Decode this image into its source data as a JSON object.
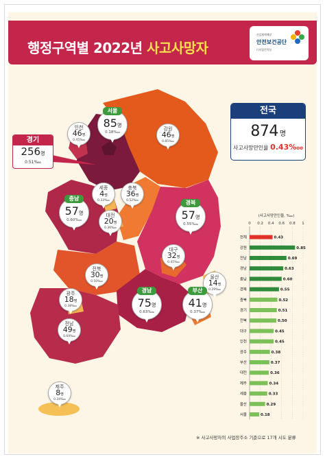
{
  "header": {
    "title_main": "행정구역별 2022년",
    "title_highlight": "사고사망자",
    "logo_small": "산업재해예방",
    "logo_main": "안전보건공단",
    "logo_sub": "디지털전략실"
  },
  "total": {
    "label": "전국",
    "count": "874",
    "unit": "명",
    "rate_label": "사고사망만인율",
    "rate": "0.43",
    "rate_unit": "‱"
  },
  "callout_gyeonggi": {
    "name": "경기",
    "count": "256",
    "unit": "명",
    "rate": "0.51",
    "rate_unit": "‱"
  },
  "regions": [
    {
      "id": "seoul",
      "name": "서울",
      "count": "85",
      "rate": "0.18",
      "unit": "명",
      "rate_unit": "‱",
      "color": "#3d9a3d"
    },
    {
      "id": "incheon",
      "name": "인천",
      "count": "46",
      "rate": "0.45",
      "unit": "명",
      "rate_unit": "‱",
      "color": ""
    },
    {
      "id": "gangwon",
      "name": "강원",
      "count": "46",
      "rate": "0.85",
      "unit": "명",
      "rate_unit": "‱",
      "color": ""
    },
    {
      "id": "sejong",
      "name": "세종",
      "count": "4",
      "rate": "0.33",
      "unit": "명",
      "rate_unit": "‱",
      "color": ""
    },
    {
      "id": "chungbuk",
      "name": "충북",
      "count": "36",
      "rate": "0.52",
      "unit": "명",
      "rate_unit": "‱",
      "color": ""
    },
    {
      "id": "chungnam",
      "name": "충남",
      "count": "57",
      "rate": "0.60",
      "unit": "명",
      "rate_unit": "‱",
      "color": "#3d9a3d"
    },
    {
      "id": "daejeon",
      "name": "대전",
      "count": "20",
      "rate": "0.36",
      "unit": "명",
      "rate_unit": "‱",
      "color": ""
    },
    {
      "id": "gyeongbuk",
      "name": "경북",
      "count": "57",
      "rate": "0.55",
      "unit": "명",
      "rate_unit": "‱",
      "color": "#3d9a3d"
    },
    {
      "id": "daegu",
      "name": "대구",
      "count": "32",
      "rate": "0.45",
      "unit": "명",
      "rate_unit": "‱",
      "color": ""
    },
    {
      "id": "jeonbuk",
      "name": "전북",
      "count": "30",
      "rate": "0.50",
      "unit": "명",
      "rate_unit": "‱",
      "color": ""
    },
    {
      "id": "ulsan",
      "name": "울산",
      "count": "14",
      "rate": "0.29",
      "unit": "명",
      "rate_unit": "‱",
      "color": ""
    },
    {
      "id": "gwangju",
      "name": "광주",
      "count": "18",
      "rate": "0.38",
      "unit": "명",
      "rate_unit": "‱",
      "color": ""
    },
    {
      "id": "gyeongnam",
      "name": "경남",
      "count": "75",
      "rate": "0.63",
      "unit": "명",
      "rate_unit": "‱",
      "color": "#3d9a3d"
    },
    {
      "id": "busan",
      "name": "부산",
      "count": "41",
      "rate": "0.37",
      "unit": "명",
      "rate_unit": "‱",
      "color": "#3d9a3d"
    },
    {
      "id": "jeonnam",
      "name": "전남",
      "count": "49",
      "rate": "0.69",
      "unit": "명",
      "rate_unit": "‱",
      "color": ""
    },
    {
      "id": "jeju",
      "name": "제주",
      "count": "8",
      "rate": "0.34",
      "unit": "명",
      "rate_unit": "‱",
      "color": ""
    }
  ],
  "chart_data": {
    "type": "bar",
    "title": "(사고사망만인율, ‱)",
    "xlim": [
      0,
      1
    ],
    "ticks": [
      "0",
      "0.2",
      "0.4",
      "0.6",
      "0.8",
      "1"
    ],
    "categories": [
      "전체",
      "강원",
      "전남",
      "경남",
      "충남",
      "경북",
      "충북",
      "경기",
      "전북",
      "대구",
      "인천",
      "광주",
      "부산",
      "대전",
      "제주",
      "세종",
      "울산",
      "서울"
    ],
    "values": [
      0.43,
      0.85,
      0.69,
      0.63,
      0.6,
      0.55,
      0.52,
      0.51,
      0.5,
      0.45,
      0.45,
      0.38,
      0.37,
      0.36,
      0.34,
      0.33,
      0.29,
      0.18
    ],
    "colors": {
      "overall": "#e0312a",
      "dark": "#2f8a3a",
      "light": "#7cc05a"
    }
  },
  "footnote": "※ 사고사망자의 사업장주소 기준으로 17개 시도 분류"
}
